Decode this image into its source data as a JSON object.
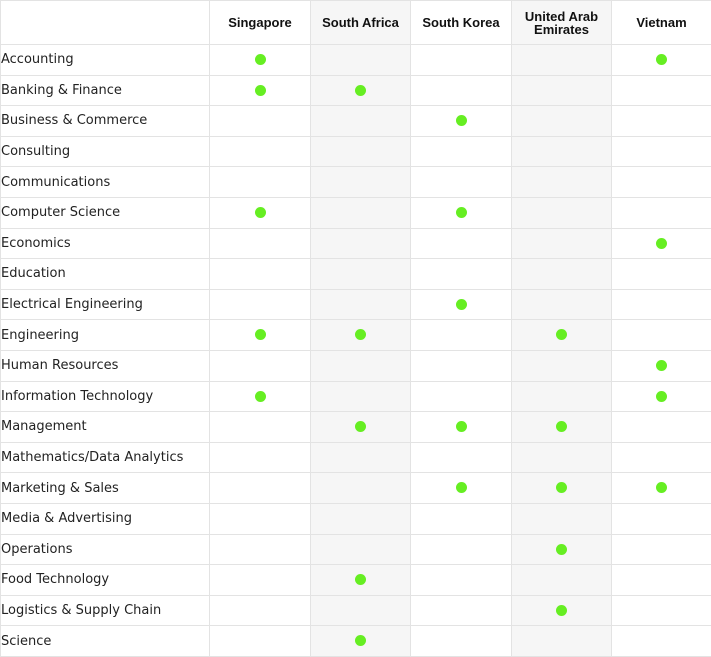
{
  "columns": [
    "Singapore",
    "South Africa",
    "South Korea",
    "United Arab Emirates",
    "Vietnam"
  ],
  "dot_color": "#66ee22",
  "rows": [
    {
      "field": "Accounting",
      "marks": [
        true,
        false,
        false,
        false,
        true
      ]
    },
    {
      "field": "Banking & Finance",
      "marks": [
        true,
        true,
        false,
        false,
        false
      ]
    },
    {
      "field": "Business & Commerce",
      "marks": [
        false,
        false,
        true,
        false,
        false
      ]
    },
    {
      "field": "Consulting",
      "marks": [
        false,
        false,
        false,
        false,
        false
      ]
    },
    {
      "field": "Communications",
      "marks": [
        false,
        false,
        false,
        false,
        false
      ]
    },
    {
      "field": "Computer Science",
      "marks": [
        true,
        false,
        true,
        false,
        false
      ]
    },
    {
      "field": "Economics",
      "marks": [
        false,
        false,
        false,
        false,
        true
      ]
    },
    {
      "field": "Education",
      "marks": [
        false,
        false,
        false,
        false,
        false
      ]
    },
    {
      "field": "Electrical Engineering",
      "marks": [
        false,
        false,
        true,
        false,
        false
      ]
    },
    {
      "field": "Engineering",
      "marks": [
        true,
        true,
        false,
        true,
        false
      ]
    },
    {
      "field": "Human Resources",
      "marks": [
        false,
        false,
        false,
        false,
        true
      ]
    },
    {
      "field": "Information Technology",
      "marks": [
        true,
        false,
        false,
        false,
        true
      ]
    },
    {
      "field": "Management",
      "marks": [
        false,
        true,
        true,
        true,
        false
      ]
    },
    {
      "field": "Mathematics/Data Analytics",
      "marks": [
        false,
        false,
        false,
        false,
        false
      ]
    },
    {
      "field": "Marketing & Sales",
      "marks": [
        false,
        false,
        true,
        true,
        true
      ]
    },
    {
      "field": "Media & Advertising",
      "marks": [
        false,
        false,
        false,
        false,
        false
      ]
    },
    {
      "field": "Operations",
      "marks": [
        false,
        false,
        false,
        true,
        false
      ]
    },
    {
      "field": "Food Technology",
      "marks": [
        false,
        true,
        false,
        false,
        false
      ]
    },
    {
      "field": "Logistics & Supply Chain",
      "marks": [
        false,
        false,
        false,
        true,
        false
      ]
    },
    {
      "field": "Science",
      "marks": [
        false,
        true,
        false,
        false,
        false
      ]
    }
  ]
}
